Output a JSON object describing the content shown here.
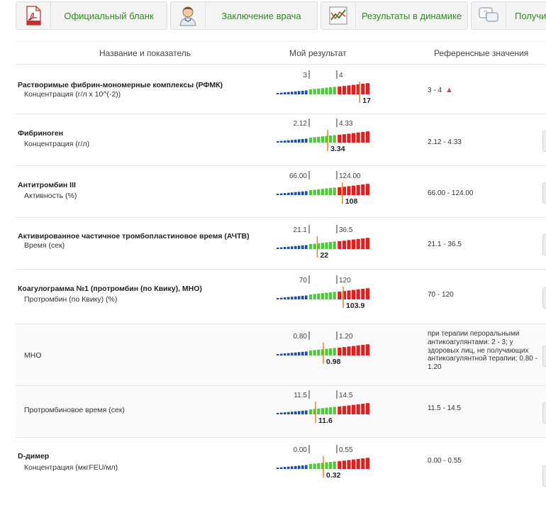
{
  "toolbar": {
    "buttons": [
      {
        "label": "Официальный бланк",
        "icon": "pdf-icon"
      },
      {
        "label": "Заключение врача",
        "icon": "doctor-icon"
      },
      {
        "label": "Результаты в динамике",
        "icon": "chart-icon"
      },
      {
        "label": "Получить",
        "icon": "chat-icon"
      }
    ]
  },
  "table": {
    "headers": {
      "name": "Название и показатель",
      "result": "Мой результат",
      "reference": "Референсные значения"
    }
  },
  "rows": [
    {
      "name": "Растворимые фибрин-мономерные комплексы (РФМК)",
      "sub": "Концентрация (г/л х 10^(-2))",
      "low": "3",
      "high": "4",
      "value": "17",
      "ref": "3 - 4",
      "flag": "up",
      "level": 0.92
    },
    {
      "name": "Фибриноген",
      "sub": "Концентрация (г/л)",
      "low": "2.12",
      "high": "4.33",
      "value": "3.34",
      "ref": "2.12 - 4.33",
      "flag": "",
      "level": 0.55
    },
    {
      "name": "Антитромбин III",
      "sub": "Активность (%)",
      "low": "66.00",
      "high": "124.00",
      "value": "108",
      "ref": "66.00 - 124.00",
      "flag": "",
      "level": 0.72
    },
    {
      "name": "Активированное частичное тромбопластиновое время (АЧТВ)",
      "sub": "Время (сек)",
      "low": "21.1",
      "high": "36.5",
      "value": "22",
      "ref": "21.1 - 36.5",
      "flag": "",
      "level": 0.43
    },
    {
      "name": "Коагулограмма №1 (протромбин (по Квику), МНО)",
      "sub": "Протромбин (по Квику) (%)",
      "low": "70",
      "high": "120",
      "value": "103.9",
      "ref": "70 - 120",
      "flag": "",
      "level": 0.73
    },
    {
      "name": "",
      "sub": "МНО",
      "low": "0.80",
      "high": "1.20",
      "value": "0.98",
      "ref": "при терапии пероральными антикоагулянтами: 2 - 3; у здоровых лиц, не получающих антикоагулянтной терапии: 0.80 - 1.20",
      "flag": "",
      "level": 0.5
    },
    {
      "name": "",
      "sub": "Протромбиновое время (сек)",
      "low": "11.5",
      "high": "14.5",
      "value": "11.6",
      "ref": "11.5 - 14.5",
      "flag": "",
      "level": 0.41
    },
    {
      "name": "D-димер",
      "sub": "Концентрация (мкгFEU/мл)",
      "low": "0.00",
      "high": "0.55",
      "value": "0.32",
      "ref": "0.00 - 0.55",
      "flag": "",
      "level": 0.5
    }
  ],
  "colors": {
    "accent": "#2e8b1e",
    "low": "#1f4fa0",
    "normal": "#4cc83a",
    "high": "#e02020",
    "marker": "#e08a20",
    "flag": "#e04040"
  }
}
